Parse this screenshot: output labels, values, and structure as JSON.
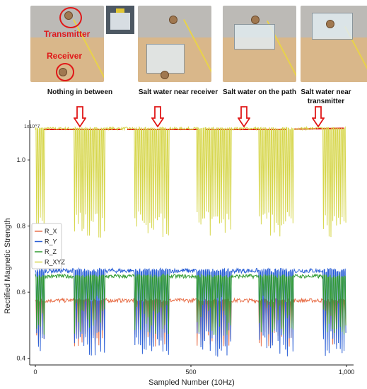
{
  "scenarios": [
    {
      "caption": "Nothing in between"
    },
    {
      "caption": "Salt water near receiver"
    },
    {
      "caption": "Salt water on the path"
    },
    {
      "caption": "Salt water near transmitter"
    }
  ],
  "photo_labels": {
    "transmitter": "Transmitter",
    "receiver": "Receiver"
  },
  "colors": {
    "annotation": "#e01818",
    "R_X": "#e8704a",
    "R_Y": "#2a5fd6",
    "R_Z": "#2f9a2f",
    "R_XYZ": "#d6d64a"
  },
  "chart_data": {
    "type": "line",
    "xlabel": "Sampled Number (10Hz)",
    "ylabel": "Rectified Magnetic Strength",
    "y_scale_label": "1x10^7",
    "xlim": [
      0,
      1000
    ],
    "ylim": [
      0.38,
      1.12
    ],
    "x_ticks": [
      0,
      500,
      1000
    ],
    "x_tick_labels": [
      "0",
      "500",
      "1,000"
    ],
    "y_ticks": [
      0.4,
      0.6,
      0.8,
      1.0
    ],
    "y_tick_labels": [
      "0.4",
      "0.6",
      "0.8",
      "1.0"
    ],
    "legend_position": "left",
    "n_samples": 1000,
    "periods": 165,
    "series": [
      {
        "name": "R_X",
        "color": "#e8704a",
        "high": 0.575,
        "low": 0.465,
        "high_jitter": 0.006,
        "low_jitter": 0.03
      },
      {
        "name": "R_Y",
        "color": "#2a5fd6",
        "high": 0.665,
        "low": 0.445,
        "high_jitter": 0.007,
        "low_jitter": 0.04
      },
      {
        "name": "R_Z",
        "color": "#2f9a2f",
        "high": 0.648,
        "low": 0.53,
        "high_jitter": 0.006,
        "low_jitter": 0.06
      },
      {
        "name": "R_XYZ",
        "color": "#d6d64a",
        "high": 1.095,
        "low": 0.805,
        "high_jitter": 0.004,
        "low_jitter": 0.04
      }
    ]
  }
}
